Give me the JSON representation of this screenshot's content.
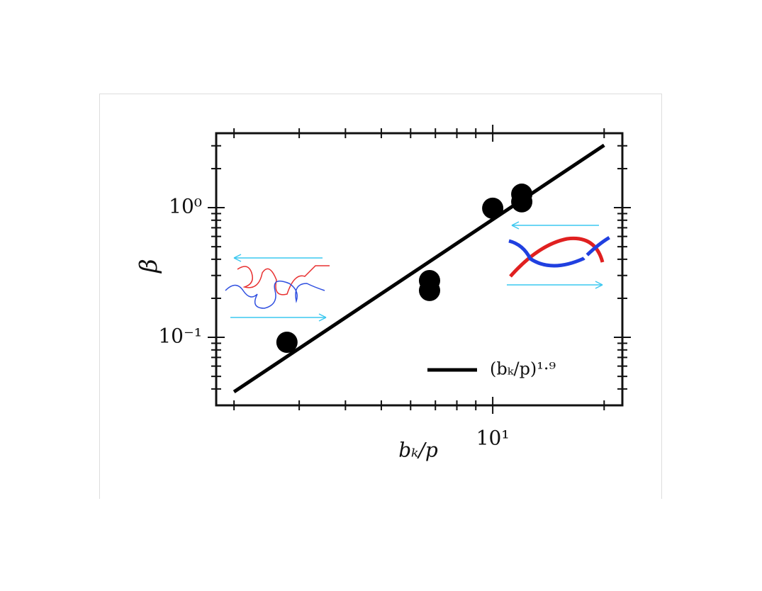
{
  "chart_data": {
    "type": "scatter",
    "x": [
      2.78,
      6.75,
      6.75,
      10,
      11.98,
      11.98
    ],
    "values": [
      0.0916,
      0.274,
      0.23,
      0.99,
      1.27,
      1.11
    ],
    "color": "#000000",
    "fit": {
      "name": "(bₖ/p)¹·⁹",
      "x": [
        2,
        20
      ],
      "values": [
        0.038,
        3.03
      ],
      "color": "#000000"
    },
    "xlabel": "bₖ/p",
    "ylabel": "β",
    "xscale": "log",
    "yscale": "log",
    "xlim": [
      1.79,
      22.4
    ],
    "ylim": [
      0.0299,
      3.75
    ],
    "xticks": [
      {
        "value": 10,
        "label": "10¹"
      }
    ],
    "yticks": [
      {
        "value": 0.1,
        "label": "10⁻¹"
      },
      {
        "value": 1,
        "label": "10⁰"
      }
    ],
    "xminorticks": [
      2,
      3,
      4,
      5,
      6,
      7,
      8,
      9,
      20
    ],
    "yminorticks": [
      0.04,
      0.05,
      0.06,
      0.07,
      0.08,
      0.09,
      0.2,
      0.3,
      0.4,
      0.5,
      0.6,
      0.7,
      0.8,
      0.9,
      2,
      3
    ],
    "legend": "lower right"
  }
}
